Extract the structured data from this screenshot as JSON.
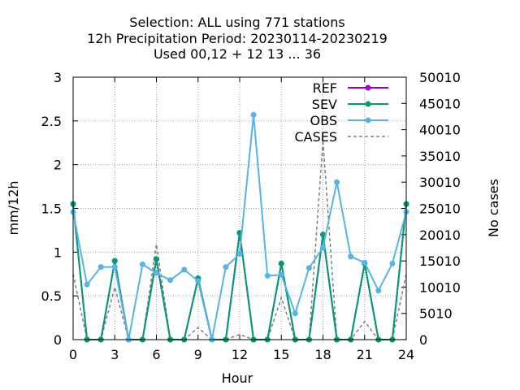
{
  "chart_data": {
    "type": "line",
    "title_lines": [
      "Selection: ALL using   771 stations",
      "12h Precipitation   Period: 20230114-20230219",
      "Used  00,12  + 12 13 ... 36"
    ],
    "xlabel": "Hour",
    "ylabel": "mm/12h",
    "y2label": "No cases",
    "xlim": [
      0,
      24
    ],
    "ylim": [
      0,
      3
    ],
    "y2lim": [
      10,
      50010
    ],
    "x_ticks": [
      "0",
      "3",
      "6",
      "9",
      "12",
      "15",
      "18",
      "21",
      "24"
    ],
    "y_ticks": [
      "0",
      "0.5",
      "1",
      "1.5",
      "2",
      "2.5",
      "3"
    ],
    "y2_ticks": [
      "0",
      "5010",
      "10010",
      "15010",
      "20010",
      "25010",
      "30010",
      "35010",
      "40010",
      "45010",
      "50010"
    ],
    "grid": true,
    "legend_position": "top-right",
    "x": [
      0,
      1,
      2,
      3,
      4,
      5,
      6,
      7,
      8,
      9,
      10,
      11,
      12,
      13,
      14,
      15,
      16,
      17,
      18,
      19,
      20,
      21,
      22,
      23,
      24
    ],
    "series": [
      {
        "name": "REF",
        "color": "#9400d3",
        "axis": "y1",
        "style": "line-points",
        "values": [
          1.55,
          0,
          0,
          0.9,
          0,
          0,
          0.92,
          0,
          0,
          0.7,
          0,
          0,
          1.22,
          0,
          0,
          0.87,
          0,
          0,
          1.2,
          0,
          0,
          0.87,
          0,
          0,
          1.55
        ]
      },
      {
        "name": "SEV",
        "color": "#009e73",
        "axis": "y1",
        "style": "line-points",
        "values": [
          1.55,
          0,
          0,
          0.9,
          0,
          0,
          0.92,
          0,
          0,
          0.7,
          0,
          0,
          1.22,
          0,
          0,
          0.87,
          0,
          0,
          1.2,
          0,
          0,
          0.87,
          0,
          0,
          1.55
        ]
      },
      {
        "name": "OBS",
        "color": "#56b4e9",
        "axis": "y1",
        "style": "line-points",
        "values": [
          1.46,
          0.63,
          0.83,
          0.83,
          0,
          0.86,
          0.76,
          0.68,
          0.8,
          0.67,
          0,
          0.83,
          0.98,
          2.57,
          0.73,
          0.74,
          0.3,
          0.82,
          1.05,
          1.8,
          0.95,
          0.88,
          0.56,
          0.87,
          1.46
        ]
      },
      {
        "name": "CASES",
        "color": "#808080",
        "axis": "y2",
        "style": "dashed",
        "values": [
          12500,
          10,
          10,
          10000,
          10,
          10,
          18200,
          10,
          10,
          2300,
          10,
          10,
          1000,
          10,
          10,
          8000,
          10,
          10,
          38000,
          10,
          10,
          3500,
          10,
          10,
          12500
        ]
      }
    ]
  }
}
